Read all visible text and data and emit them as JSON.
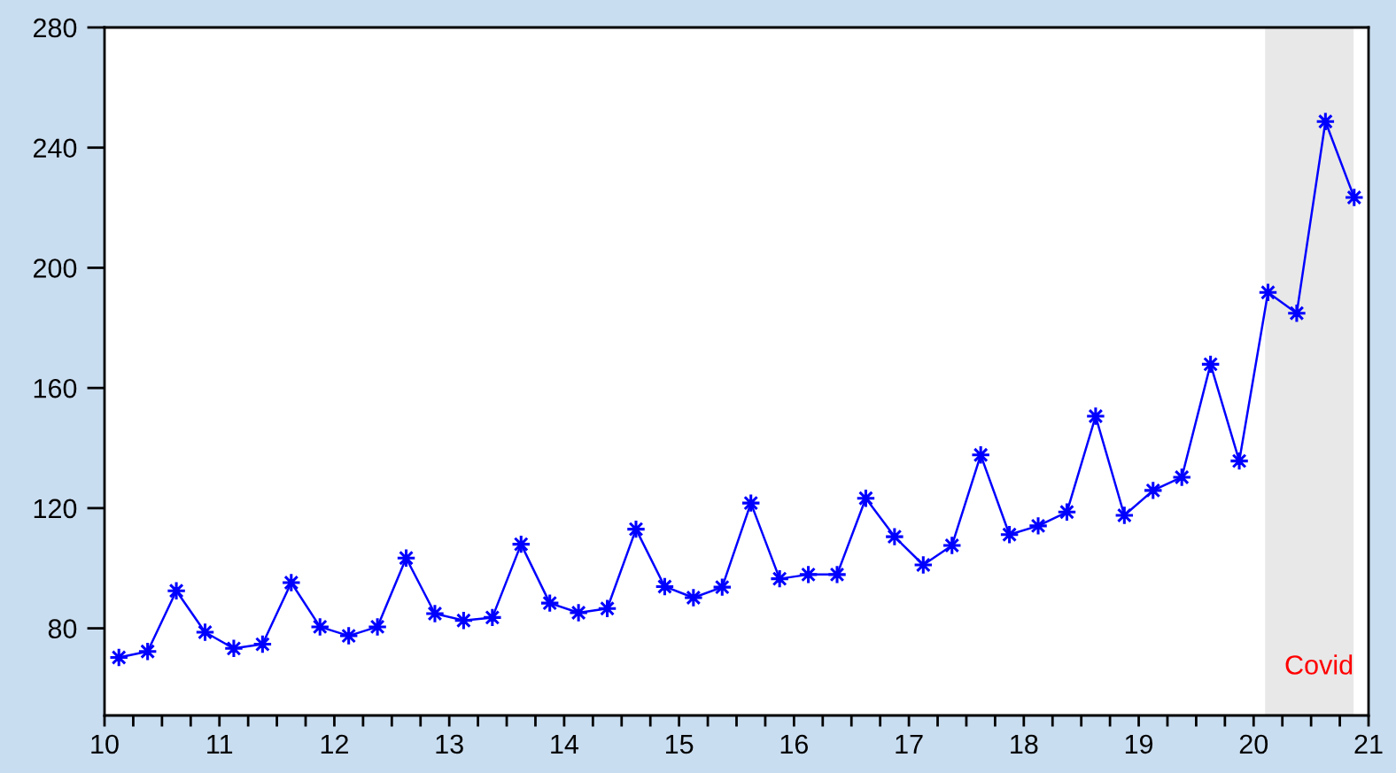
{
  "chart_data": {
    "type": "line",
    "x": [
      10.125,
      10.375,
      10.625,
      10.875,
      11.125,
      11.375,
      11.625,
      11.875,
      12.125,
      12.375,
      12.625,
      12.875,
      13.125,
      13.375,
      13.625,
      13.875,
      14.125,
      14.375,
      14.625,
      14.875,
      15.125,
      15.375,
      15.625,
      15.875,
      16.125,
      16.375,
      16.625,
      16.875,
      17.125,
      17.375,
      17.625,
      17.875,
      18.125,
      18.375,
      18.625,
      18.875,
      19.125,
      19.375,
      19.625,
      19.875,
      20.125,
      20.375,
      20.625,
      20.875
    ],
    "series": [
      {
        "color": "#0000ff",
        "values": [
          70.3,
          72.3,
          92.5,
          78.7,
          73.3,
          74.7,
          95.2,
          80.5,
          77.5,
          80.5,
          103.4,
          84.9,
          82.6,
          83.6,
          108.0,
          88.4,
          85.2,
          86.6,
          113.0,
          93.9,
          90.2,
          93.7,
          121.7,
          96.5,
          97.9,
          97.9,
          123.3,
          110.5,
          101.1,
          107.6,
          137.7,
          111.2,
          114.1,
          118.7,
          150.6,
          117.6,
          125.9,
          130.3,
          167.9,
          135.7,
          191.8,
          184.9,
          248.7,
          223.4
        ]
      }
    ],
    "marker": "star",
    "line_style": "solid",
    "grid": false,
    "xlim": [
      10,
      21
    ],
    "ylim": [
      51,
      280
    ],
    "yticks": [
      80,
      120,
      160,
      200,
      240,
      280
    ],
    "xticks": [
      10,
      11,
      12,
      13,
      14,
      15,
      16,
      17,
      18,
      19,
      20,
      21,
      {
        "value": 10.25,
        "label": null
      },
      {
        "value": 10.5,
        "label": null
      },
      {
        "value": 10.75,
        "label": null
      },
      {
        "value": 11.25,
        "label": null
      },
      {
        "value": 11.5,
        "label": null
      },
      {
        "value": 11.75,
        "label": null
      },
      {
        "value": 12.25,
        "label": null
      },
      {
        "value": 12.5,
        "label": null
      },
      {
        "value": 12.75,
        "label": null
      },
      {
        "value": 13.25,
        "label": null
      },
      {
        "value": 13.5,
        "label": null
      },
      {
        "value": 13.75,
        "label": null
      },
      {
        "value": 14.25,
        "label": null
      },
      {
        "value": 14.5,
        "label": null
      },
      {
        "value": 14.75,
        "label": null
      },
      {
        "value": 15.25,
        "label": null
      },
      {
        "value": 15.5,
        "label": null
      },
      {
        "value": 15.75,
        "label": null
      },
      {
        "value": 16.25,
        "label": null
      },
      {
        "value": 16.5,
        "label": null
      },
      {
        "value": 16.75,
        "label": null
      },
      {
        "value": 17.25,
        "label": null
      },
      {
        "value": 17.5,
        "label": null
      },
      {
        "value": 17.75,
        "label": null
      },
      {
        "value": 18.25,
        "label": null
      },
      {
        "value": 18.5,
        "label": null
      },
      {
        "value": 18.75,
        "label": null
      },
      {
        "value": 19.25,
        "label": null
      },
      {
        "value": 19.5,
        "label": null
      },
      {
        "value": 19.75,
        "label": null
      },
      {
        "value": 20.25,
        "label": null
      },
      {
        "value": 20.5,
        "label": null
      },
      {
        "value": 20.75,
        "label": null
      }
    ],
    "bands": [
      {
        "axis": "x",
        "from": 20.1,
        "to": 20.87,
        "label": "Covid",
        "color": "#e8e8e8"
      }
    ]
  }
}
